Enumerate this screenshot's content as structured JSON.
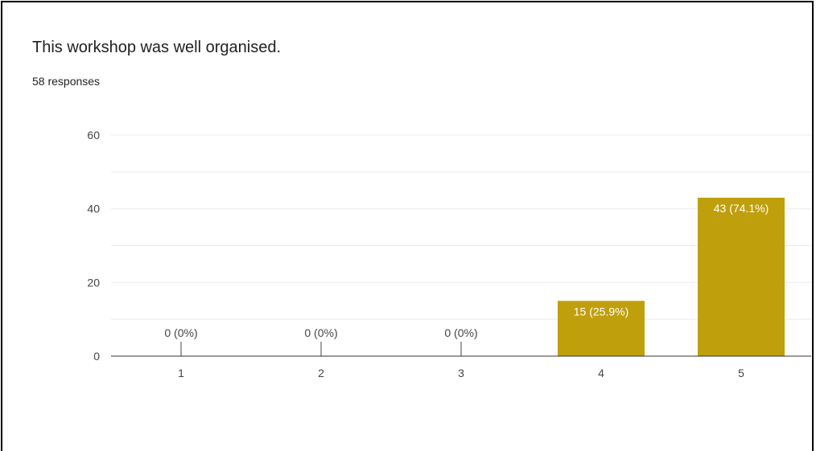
{
  "question": {
    "title": "This workshop was well organised.",
    "responses": "58 responses"
  },
  "colors": {
    "bar": "#bf9f0c",
    "label_inside": "#ffffff",
    "label_outside": "#444444"
  },
  "chart_data": {
    "type": "bar",
    "categories": [
      "1",
      "2",
      "3",
      "4",
      "5"
    ],
    "values": [
      0,
      0,
      0,
      15,
      43
    ],
    "data_labels": [
      "0 (0%)",
      "0 (0%)",
      "0 (0%)",
      "15 (25.9%)",
      "43 (74.1%)"
    ],
    "ylim": [
      0,
      60
    ],
    "yticks": [
      "0",
      "20",
      "40",
      "60"
    ],
    "grid": true,
    "legend": "none"
  }
}
